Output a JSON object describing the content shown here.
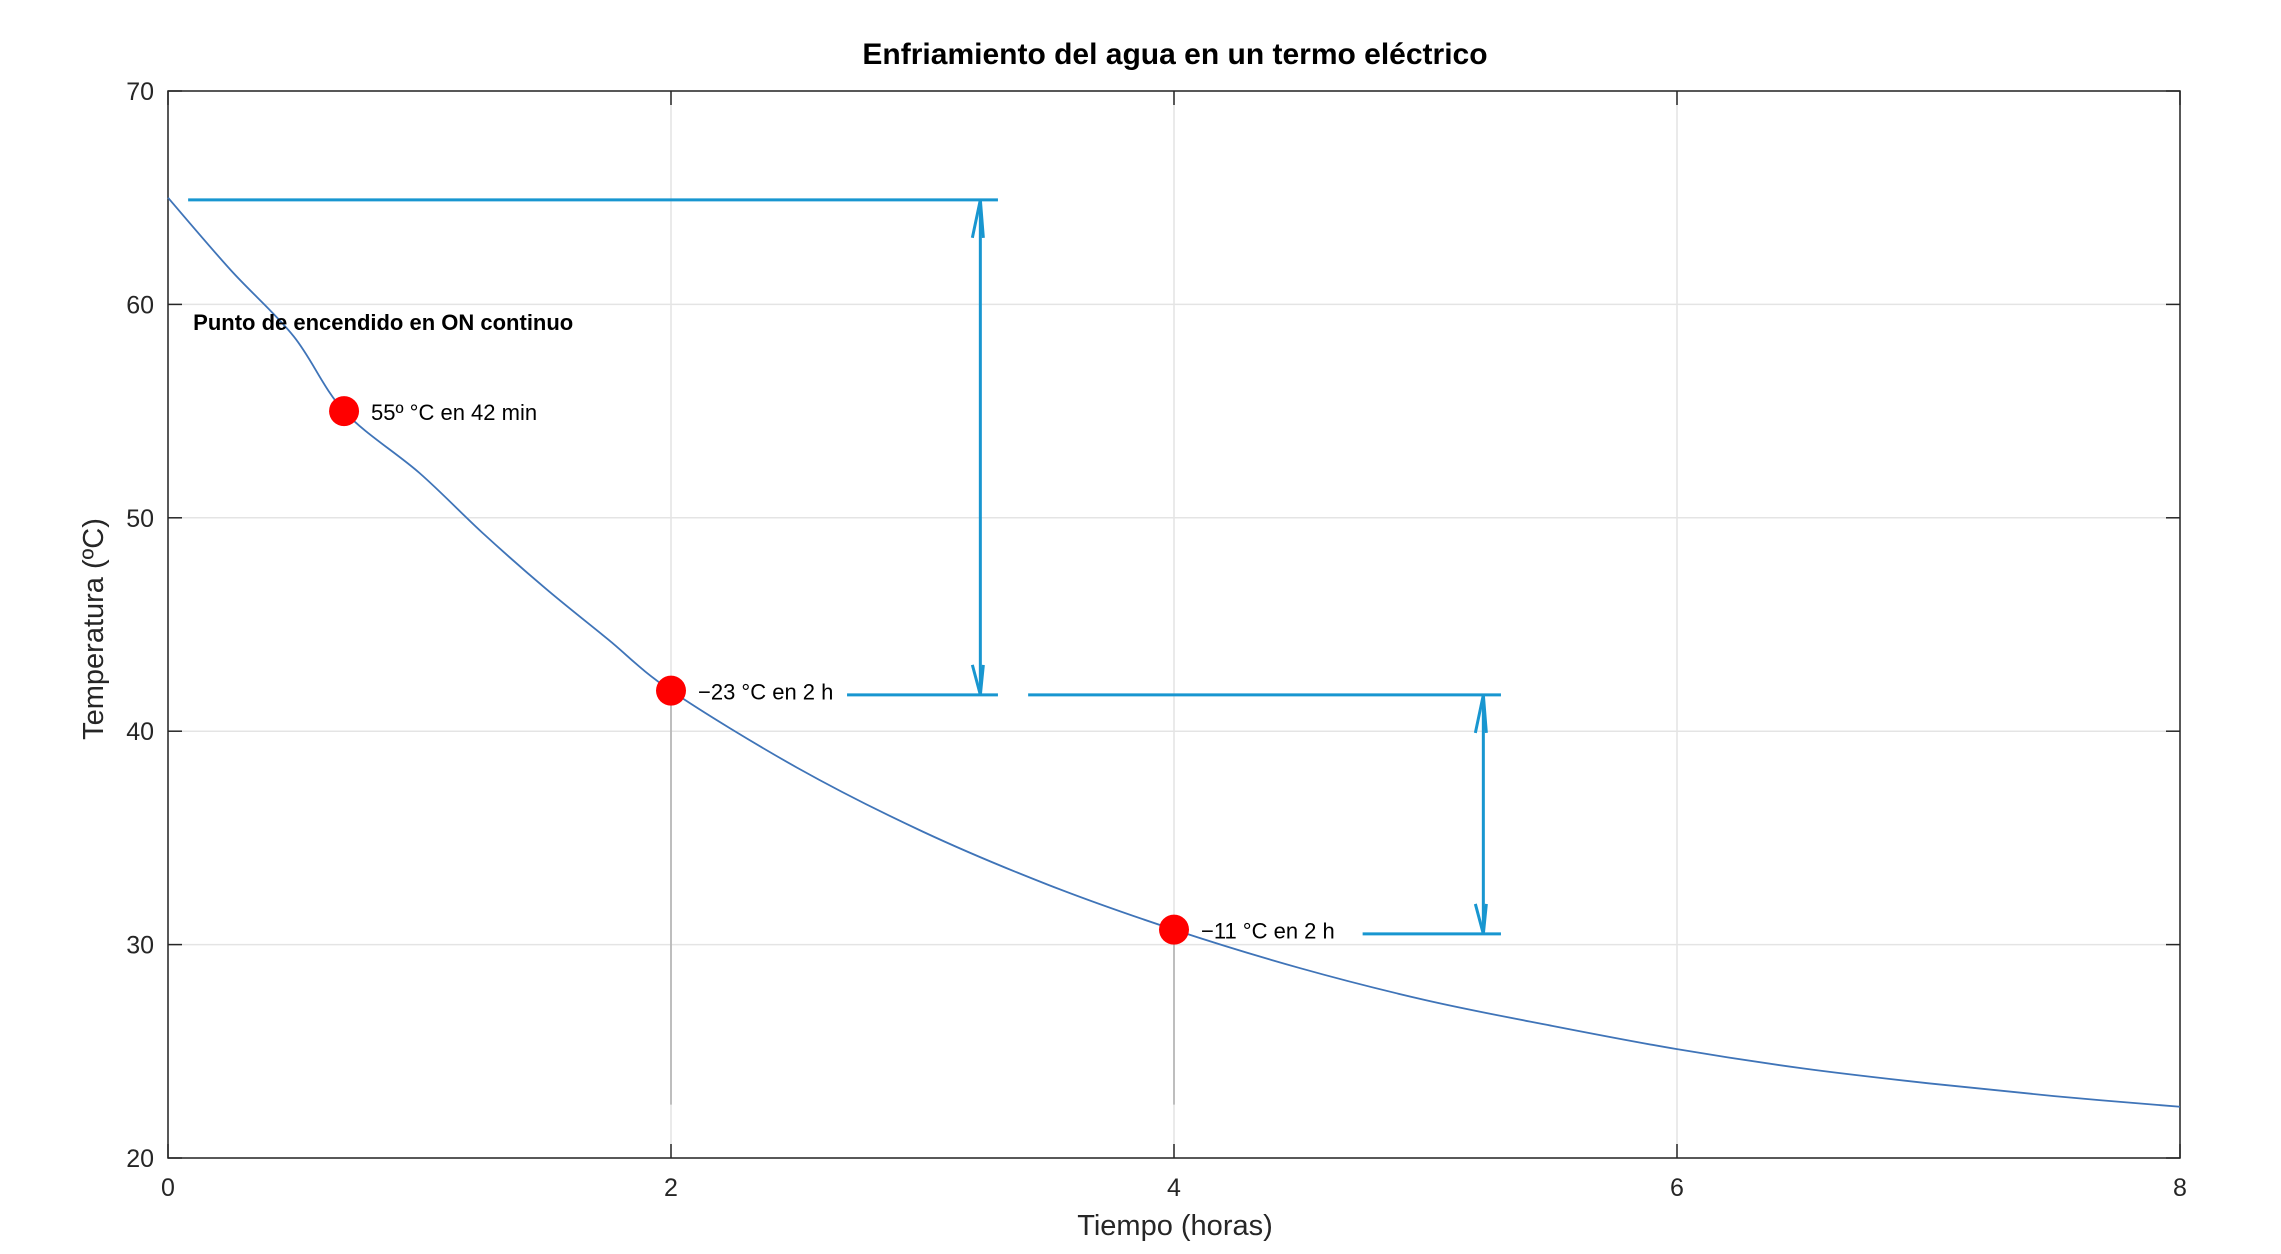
{
  "chart_data": {
    "type": "line",
    "title": "Enfriamiento del agua en un termo eléctrico",
    "xlabel": "Tiempo (horas)",
    "ylabel": "Temperatura (ºC)",
    "xlim": [
      0,
      8
    ],
    "ylim": [
      20,
      70
    ],
    "xticks": [
      0,
      2,
      4,
      6,
      8
    ],
    "xtick_labels": [
      "0",
      "2",
      "4",
      "6",
      "8"
    ],
    "yticks": [
      20,
      30,
      40,
      50,
      60,
      70
    ],
    "ytick_labels": [
      "20",
      "30",
      "40",
      "50",
      "60",
      "70"
    ],
    "grid": true,
    "series": [
      {
        "x": [
          0,
          0.25,
          0.5,
          0.7,
          1,
          1.25,
          1.5,
          1.75,
          2,
          2.5,
          3,
          3.5,
          4,
          4.5,
          5,
          5.5,
          6,
          6.5,
          7,
          7.5,
          8
        ],
        "values": [
          65,
          61.6,
          58.5,
          55,
          52.1,
          49.3,
          46.7,
          44.3,
          41.9,
          38.3,
          35.3,
          32.8,
          30.7,
          28.9,
          27.4,
          26.2,
          25.1,
          24.2,
          23.5,
          22.9,
          22.4
        ],
        "color": "#3f74b8"
      }
    ],
    "markers": [
      {
        "x": 0.7,
        "y": 55,
        "label": "55º °C en 42 min",
        "color": "#ff0000"
      },
      {
        "x": 2,
        "y": 41.9,
        "label": "−23 °C en 2 h",
        "color": "#ff0000"
      },
      {
        "x": 4,
        "y": 30.7,
        "label": "−11 °C en 2 h",
        "color": "#ff0000"
      }
    ],
    "drop_lines": [
      {
        "x": 2,
        "y_from": 22.5,
        "y_to": 41.9
      },
      {
        "x": 4,
        "y_from": 22.5,
        "y_to": 30.7
      }
    ],
    "dimension_lines": [
      {
        "y_top": 64.9,
        "y_bottom": 41.7,
        "x_arrow": 3.23,
        "x_ext_start": 0.08,
        "x_ext_end": 3.3,
        "x_bottom_ext_start": 2.7,
        "x_bottom_ext_end": 3.3
      },
      {
        "y_top": 41.7,
        "y_bottom": 30.5,
        "x_arrow": 5.23,
        "x_ext_start": 3.42,
        "x_ext_end": 5.3,
        "x_bottom_ext_start": 4.75,
        "x_bottom_ext_end": 5.3
      }
    ],
    "dimension_color": "#1896d0",
    "annotations": [
      {
        "text": "Punto de encendido en ON continuo",
        "x": 0.1,
        "y": 58.8
      }
    ]
  }
}
